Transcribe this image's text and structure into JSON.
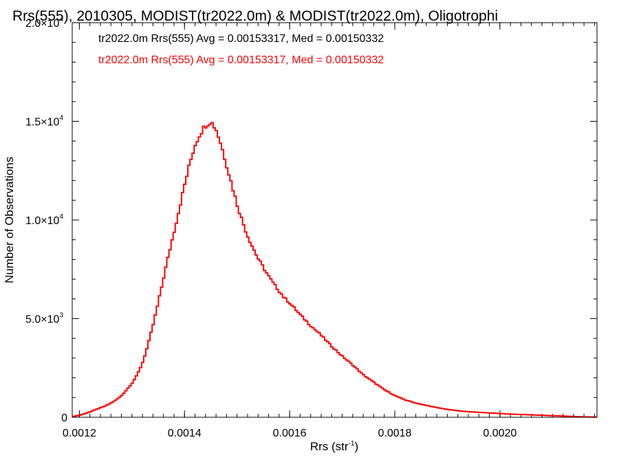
{
  "chart_data": {
    "type": "histogram-step",
    "title": "Rrs(555), 2010305, MODIST(tr2022.0m) & MODIST(tr2022.0m), Oligotrophi",
    "xlabel": {
      "base": "Rrs (str",
      "sup": "-1",
      "close": ")"
    },
    "ylabel": "Number of Observations",
    "xlim": [
      0.0011864,
      0.0021847
    ],
    "ylim": [
      0,
      20000
    ],
    "xticks": [
      {
        "value": 0.0012,
        "label": "0.0012"
      },
      {
        "value": 0.0014,
        "label": "0.0014"
      },
      {
        "value": 0.0016,
        "label": "0.0016"
      },
      {
        "value": 0.0018,
        "label": "0.0018"
      },
      {
        "value": 0.002,
        "label": "0.0020"
      }
    ],
    "yticks": [
      {
        "value": 0,
        "mant": "0",
        "exp": ""
      },
      {
        "value": 5000,
        "mant": "5.0×10",
        "exp": "3"
      },
      {
        "value": 10000,
        "mant": "1.0×10",
        "exp": "4"
      },
      {
        "value": 15000,
        "mant": "1.5×10",
        "exp": "4"
      },
      {
        "value": 20000,
        "mant": "2.0×10",
        "exp": "4"
      }
    ],
    "legend": [
      {
        "text": "tr2022.0m Rrs(555) Avg = 0.00153317, Med = 0.00150332",
        "color": "#000000"
      },
      {
        "text": "tr2022.0m Rrs(555) Avg = 0.00153317, Med = 0.00150332",
        "color": "#ff0000"
      }
    ],
    "legend_position": "top-left",
    "grid": false,
    "series": [
      {
        "color": "#ff0000",
        "binwidth": 4e-06,
        "x": [
          0.00119,
          0.0012,
          0.00121,
          0.00122,
          0.00123,
          0.00124,
          0.00125,
          0.00126,
          0.00127,
          0.00128,
          0.00129,
          0.0013,
          0.00131,
          0.00132,
          0.00133,
          0.00134,
          0.00135,
          0.00136,
          0.00137,
          0.00138,
          0.00139,
          0.0014,
          0.00141,
          0.00142,
          0.00143,
          0.00144,
          0.00145,
          0.00146,
          0.00147,
          0.00148,
          0.00149,
          0.0015,
          0.00151,
          0.00152,
          0.00153,
          0.00154,
          0.00155,
          0.00156,
          0.00157,
          0.00158,
          0.00159,
          0.0016,
          0.00162,
          0.00164,
          0.00166,
          0.00168,
          0.0017,
          0.00172,
          0.00174,
          0.00176,
          0.00178,
          0.0018,
          0.00182,
          0.00184,
          0.00186,
          0.00188,
          0.0019,
          0.00192,
          0.00194,
          0.00196,
          0.00198,
          0.002,
          0.00202,
          0.00204,
          0.00206,
          0.00208,
          0.0021,
          0.00212,
          0.00214,
          0.00216,
          0.00218
        ],
        "y": [
          50,
          100,
          180,
          270,
          380,
          480,
          580,
          720,
          880,
          1090,
          1400,
          1720,
          2150,
          2750,
          3600,
          4650,
          5800,
          7050,
          8250,
          9400,
          10550,
          11750,
          12850,
          13800,
          14400,
          14800,
          15000,
          14600,
          13800,
          12800,
          11800,
          10800,
          9950,
          9200,
          8600,
          8050,
          7600,
          7150,
          6750,
          6400,
          6050,
          5800,
          5200,
          4650,
          4150,
          3600,
          3100,
          2650,
          2150,
          1780,
          1400,
          1100,
          880,
          720,
          600,
          490,
          400,
          330,
          280,
          250,
          220,
          190,
          160,
          140,
          120,
          100,
          80,
          60,
          40,
          20,
          10
        ]
      }
    ]
  }
}
